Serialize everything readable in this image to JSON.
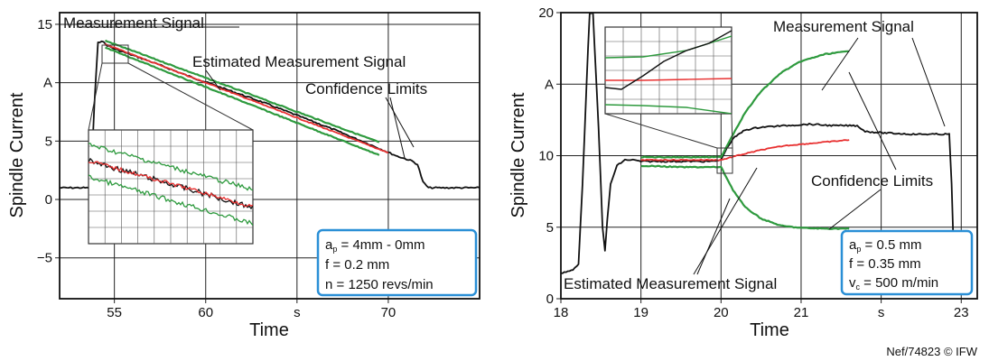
{
  "chart_data": [
    {
      "type": "line",
      "xlabel": "Time",
      "ylabel": "Spindle Current",
      "xlim": [
        52,
        75
      ],
      "ylim": [
        -8.5,
        16
      ],
      "x_ticks": [
        {
          "v": 55,
          "label": "55"
        },
        {
          "v": 60,
          "label": "60"
        },
        {
          "v": 65,
          "label": "s"
        },
        {
          "v": 70,
          "label": "70"
        }
      ],
      "y_ticks": [
        {
          "v": -5,
          "label": "−5"
        },
        {
          "v": 0,
          "label": "0"
        },
        {
          "v": 5,
          "label": "5"
        },
        {
          "v": 10,
          "label": "A"
        },
        {
          "v": 15,
          "label": "15"
        }
      ],
      "grid": true,
      "series": [
        {
          "name": "Measurement Signal",
          "color": "#111111",
          "x": [
            52,
            53.7,
            53.9,
            54.1,
            54.3,
            54.6,
            55,
            57,
            59,
            61,
            63,
            65,
            67,
            69,
            70.5,
            71.3,
            71.6,
            71.9,
            72.2,
            75
          ],
          "y": [
            1,
            1,
            8,
            13.4,
            13.6,
            13.2,
            12.9,
            11.8,
            10.6,
            9.5,
            8.4,
            7.2,
            6.0,
            4.7,
            3.7,
            3.3,
            3.0,
            1.5,
            1,
            1
          ]
        },
        {
          "name": "Estimated Measurement Signal",
          "color": "#e83030",
          "x": [
            54.5,
            70
          ],
          "y": [
            13.3,
            4.0
          ]
        },
        {
          "name": "Confidence Limits",
          "color": "#2e9a3e",
          "x": [
            54.5,
            69.5
          ],
          "y": [
            13.6,
            4.9
          ]
        },
        {
          "name": "Confidence Limits",
          "color": "#2e9a3e",
          "x": [
            54.5,
            69.5
          ],
          "y": [
            13.0,
            3.8
          ]
        }
      ],
      "annotations": [
        {
          "text": "Measurement Signal"
        },
        {
          "text": "Estimated Measurement Signal"
        },
        {
          "text": "Confidence Limits"
        }
      ],
      "parameters": [
        {
          "sym": "a",
          "sub": "p",
          "val": " = 4mm - 0mm"
        },
        {
          "sym": "f",
          "sub": "",
          "val": " = 0.2 mm"
        },
        {
          "sym": "n",
          "sub": "",
          "val": " = 1250 revs/min"
        }
      ]
    },
    {
      "type": "line",
      "xlabel": "Time",
      "ylabel": "Spindle Current",
      "xlim": [
        18,
        23.2
      ],
      "ylim": [
        0,
        20
      ],
      "x_ticks": [
        {
          "v": 18,
          "label": "18"
        },
        {
          "v": 19,
          "label": "19"
        },
        {
          "v": 20,
          "label": "20"
        },
        {
          "v": 21,
          "label": "21"
        },
        {
          "v": 22,
          "label": "s"
        },
        {
          "v": 23,
          "label": "23"
        }
      ],
      "y_ticks": [
        {
          "v": 0,
          "label": "0"
        },
        {
          "v": 5,
          "label": "5"
        },
        {
          "v": 10,
          "label": "10"
        },
        {
          "v": 15,
          "label": "A"
        },
        {
          "v": 20,
          "label": "20"
        }
      ],
      "grid": true,
      "series": [
        {
          "name": "Measurement Signal",
          "color": "#111111",
          "x": [
            18,
            18.15,
            18.22,
            18.27,
            18.32,
            18.36,
            18.4,
            18.47,
            18.52,
            18.55,
            18.58,
            18.62,
            18.7,
            18.8,
            18.9,
            19.0,
            19.3,
            19.6,
            19.9,
            20.0,
            20.05,
            20.15,
            20.3,
            20.5,
            20.8,
            21.1,
            21.4,
            21.7,
            21.8,
            22.0,
            22.4,
            22.8,
            22.85,
            22.88,
            22.92
          ],
          "y": [
            1.8,
            2.0,
            2.4,
            8.0,
            15.0,
            20,
            20,
            12.0,
            5.0,
            3.4,
            5.5,
            8.0,
            9.3,
            9.7,
            9.7,
            9.6,
            9.6,
            9.6,
            9.6,
            9.7,
            10.3,
            11.2,
            11.8,
            12.0,
            12.1,
            12.2,
            12.1,
            12.1,
            11.7,
            11.6,
            11.5,
            11.5,
            11.5,
            8.0,
            0.5
          ]
        },
        {
          "name": "Estimated Measurement Signal",
          "color": "#e83030",
          "x": [
            19.0,
            19.5,
            20.0,
            20.2,
            20.5,
            20.8,
            21.2,
            21.6
          ],
          "y": [
            9.7,
            9.7,
            9.7,
            10.0,
            10.4,
            10.7,
            10.9,
            11.1
          ]
        },
        {
          "name": "Confidence Limits",
          "color": "#2e9a3e",
          "x": [
            19.0,
            19.5,
            20.0,
            20.15,
            20.3,
            20.5,
            20.75,
            21.0,
            21.3,
            21.6
          ],
          "y": [
            9.9,
            9.9,
            9.9,
            11.5,
            13.0,
            14.5,
            15.8,
            16.6,
            17.1,
            17.3
          ]
        },
        {
          "name": "Confidence Limits",
          "color": "#2e9a3e",
          "x": [
            19.0,
            19.5,
            20.0,
            20.15,
            20.3,
            20.5,
            20.75,
            21.0,
            21.3,
            21.6
          ],
          "y": [
            9.3,
            9.2,
            9.2,
            7.6,
            6.4,
            5.6,
            5.1,
            4.95,
            4.9,
            4.9
          ]
        }
      ],
      "annotations": [
        {
          "text": "Measurement Signal"
        },
        {
          "text": "Confidence Limits"
        },
        {
          "text": "Estimated Measurement Signal"
        }
      ],
      "parameters": [
        {
          "sym": "a",
          "sub": "p",
          "val": " = 0.5 mm"
        },
        {
          "sym": "f",
          "sub": "",
          "val": " = 0.35 mm"
        },
        {
          "sym": "v",
          "sub": "c",
          "val": " = 500  m/min"
        }
      ]
    }
  ],
  "credit": "Nef/74823 © IFW"
}
